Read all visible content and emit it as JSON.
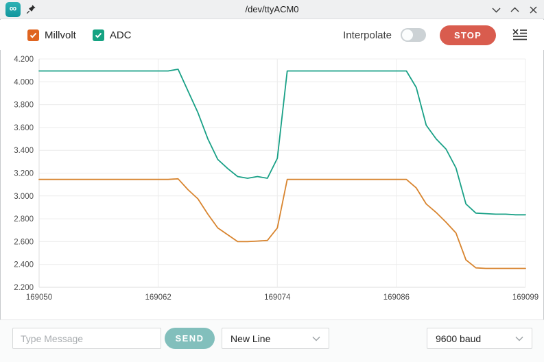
{
  "window": {
    "title": "/dev/ttyACM0",
    "app_icon": "arduino-logo-icon",
    "pin_icon": "pushpin-icon"
  },
  "titlebar_controls": {
    "minimize_icon": "chevron-down-icon",
    "maximize_icon": "chevron-up-icon",
    "close_icon": "close-icon"
  },
  "legend": [
    {
      "label": "Millvolt",
      "checked": true,
      "color": "#df6420"
    },
    {
      "label": "ADC",
      "checked": true,
      "color": "#15a382"
    }
  ],
  "toolbar": {
    "interpolate_label": "Interpolate",
    "interpolate_on": false,
    "stop_label": "STOP",
    "stop_color": "#d95c4e",
    "clear_icon": "clear-plot-icon"
  },
  "bottombar": {
    "message_placeholder": "Type Message",
    "send_label": "SEND",
    "send_color": "#82bfbc",
    "line_ending_value": "New Line",
    "baud_rate_value": "9600 baud"
  },
  "chart_data": {
    "type": "line",
    "title": "",
    "xlabel": "",
    "ylabel": "",
    "grid": true,
    "legend_position": "top-left",
    "ylim": [
      2.2,
      4.2
    ],
    "yticks": [
      4.2,
      4.0,
      3.8,
      3.6,
      3.4,
      3.2,
      3.0,
      2.8,
      2.6,
      2.4,
      2.2
    ],
    "xticks": [
      169050,
      169062,
      169074,
      169086,
      169099
    ],
    "x": [
      169050,
      169051,
      169052,
      169053,
      169054,
      169055,
      169056,
      169057,
      169058,
      169059,
      169060,
      169061,
      169062,
      169063,
      169064,
      169065,
      169066,
      169067,
      169068,
      169069,
      169070,
      169071,
      169072,
      169073,
      169074,
      169075,
      169076,
      169077,
      169078,
      169079,
      169080,
      169081,
      169082,
      169083,
      169084,
      169085,
      169086,
      169087,
      169088,
      169089,
      169090,
      169091,
      169092,
      169093,
      169094,
      169095,
      169096,
      169097,
      169098,
      169099
    ],
    "series": [
      {
        "name": "Millvolt",
        "color": "#d8842e",
        "values": [
          3.145,
          3.145,
          3.145,
          3.145,
          3.145,
          3.145,
          3.145,
          3.145,
          3.145,
          3.145,
          3.145,
          3.145,
          3.145,
          3.145,
          3.15,
          3.055,
          2.975,
          2.84,
          2.72,
          2.66,
          2.6,
          2.6,
          2.605,
          2.61,
          2.72,
          3.145,
          3.145,
          3.145,
          3.145,
          3.145,
          3.145,
          3.145,
          3.145,
          3.145,
          3.145,
          3.145,
          3.145,
          3.145,
          3.07,
          2.93,
          2.855,
          2.77,
          2.675,
          2.44,
          2.37,
          2.365,
          2.365,
          2.365,
          2.365,
          2.365
        ]
      },
      {
        "name": "ADC",
        "color": "#18a086",
        "values": [
          4.095,
          4.095,
          4.095,
          4.095,
          4.095,
          4.095,
          4.095,
          4.095,
          4.095,
          4.095,
          4.095,
          4.095,
          4.095,
          4.095,
          4.11,
          3.92,
          3.73,
          3.5,
          3.32,
          3.24,
          3.17,
          3.155,
          3.17,
          3.155,
          3.33,
          4.095,
          4.095,
          4.095,
          4.095,
          4.095,
          4.095,
          4.095,
          4.095,
          4.095,
          4.095,
          4.095,
          4.095,
          4.095,
          3.95,
          3.62,
          3.5,
          3.41,
          3.245,
          2.93,
          2.85,
          2.845,
          2.84,
          2.84,
          2.835,
          2.835
        ]
      }
    ]
  }
}
